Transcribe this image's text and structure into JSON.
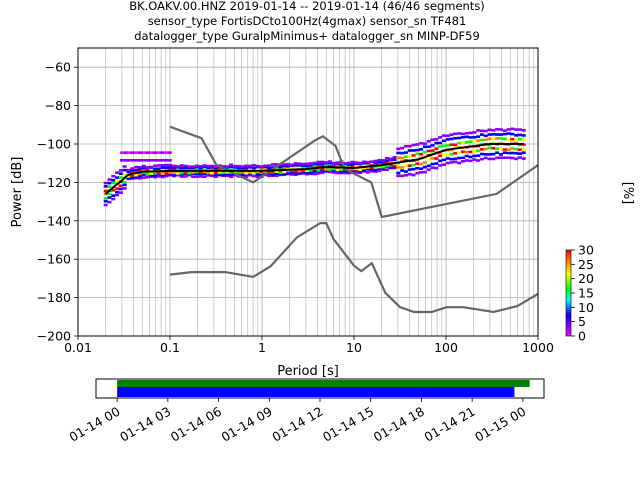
{
  "title_lines": [
    "BK.OAKV.00.HNZ   2019-01-14 -- 2019-01-14  (46/46 segments)",
    "sensor_type FortisDCto100Hz(4gmax) sensor_sn TF481",
    "datalogger_type GuralpMinimus+ datalogger_sn MINP-DF59"
  ],
  "chart_data": [
    {
      "type": "line",
      "xlabel": "Period [s]",
      "ylabel": "Power [dB]",
      "xscale": "log",
      "xlim": [
        0.01,
        1000
      ],
      "ylim": [
        -200,
        -50
      ],
      "xticks": [
        {
          "value": 0.01,
          "label": "0.01"
        },
        {
          "value": 0.1,
          "label": "0.1"
        },
        {
          "value": 1,
          "label": "1"
        },
        {
          "value": 10,
          "label": "10"
        },
        {
          "value": 100,
          "label": "100"
        },
        {
          "value": 1000,
          "label": "1000"
        }
      ],
      "yticks": [
        -200,
        -180,
        -160,
        -140,
        -120,
        -100,
        -80,
        -60
      ],
      "grid": true,
      "noise_models": [
        {
          "points": [
            [
              0.1,
              -91
            ],
            [
              0.22,
              -97
            ],
            [
              0.32,
              -111
            ],
            [
              0.8,
              -120
            ],
            [
              3.8,
              -98
            ],
            [
              4.6,
              -96
            ],
            [
              6.3,
              -101
            ],
            [
              7.9,
              -113
            ],
            [
              15.4,
              -120
            ],
            [
              20,
              -138
            ],
            [
              354.8,
              -126
            ],
            [
              1000,
              -111
            ]
          ]
        },
        {
          "points": [
            [
              0.1,
              -168
            ],
            [
              0.17,
              -166.7
            ],
            [
              0.4,
              -166.7
            ],
            [
              0.8,
              -169.2
            ],
            [
              1.24,
              -163.7
            ],
            [
              2.4,
              -148.6
            ],
            [
              4.3,
              -141.2
            ],
            [
              5.0,
              -141.2
            ],
            [
              6.0,
              -149.6
            ],
            [
              10.0,
              -163.4
            ],
            [
              12.0,
              -166.2
            ],
            [
              15.6,
              -162.1
            ],
            [
              21.9,
              -177.5
            ],
            [
              31.6,
              -185
            ],
            [
              45,
              -187.5
            ],
            [
              70,
              -187.5
            ],
            [
              101,
              -185
            ],
            [
              154,
              -185
            ],
            [
              328,
              -187.5
            ],
            [
              600,
              -184.4
            ],
            [
              1000,
              -178
            ]
          ]
        }
      ],
      "mean_curve": [
        [
          0.02,
          -126
        ],
        [
          0.025,
          -122
        ],
        [
          0.03,
          -119
        ],
        [
          0.035,
          -116
        ],
        [
          0.05,
          -114.5
        ],
        [
          0.1,
          -114
        ],
        [
          0.3,
          -114
        ],
        [
          1,
          -114
        ],
        [
          3,
          -113
        ],
        [
          5,
          -112
        ],
        [
          10,
          -112.5
        ],
        [
          20,
          -111
        ],
        [
          50,
          -108
        ],
        [
          100,
          -103
        ],
        [
          300,
          -100
        ],
        [
          700,
          -100
        ]
      ],
      "psd_colorbar": {
        "label": "[%]",
        "ticks": [
          0,
          5,
          10,
          15,
          20,
          25,
          30
        ],
        "range": [
          0,
          30
        ]
      }
    },
    {
      "type": "timeline",
      "tick_labels": [
        "01-14 00",
        "01-14 03",
        "01-14 06",
        "01-14 09",
        "01-14 12",
        "01-14 15",
        "01-14 18",
        "01-14 21",
        "01-15 00"
      ],
      "xlim_hours": [
        -1.25,
        25.25
      ],
      "bars": [
        {
          "color": "#008000",
          "start_hours": 0,
          "end_hours": 24.4
        },
        {
          "color": "#0000ff",
          "start_hours": 0,
          "end_hours": 23.5
        }
      ]
    }
  ],
  "colors": {
    "noise_model": "#666666",
    "mean": "#000000"
  }
}
